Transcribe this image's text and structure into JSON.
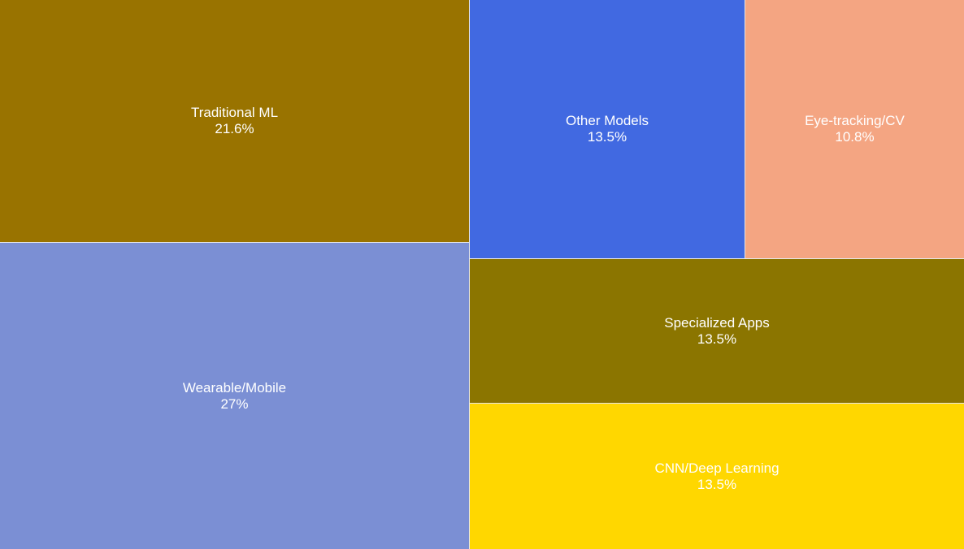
{
  "chart_data": {
    "type": "treemap",
    "title": "",
    "items": [
      {
        "name": "Wearable/Mobile",
        "value": 27,
        "label": "27%",
        "color": "#7b8fd4"
      },
      {
        "name": "Traditional ML",
        "value": 21.6,
        "label": "21.6%",
        "color": "#997300"
      },
      {
        "name": "Other Models",
        "value": 13.5,
        "label": "13.5%",
        "color": "#4169e1"
      },
      {
        "name": "Eye-tracking/CV",
        "value": 10.8,
        "label": "10.8%",
        "color": "#f4a582"
      },
      {
        "name": "Specialized Apps",
        "value": 13.5,
        "label": "13.5%",
        "color": "#8b7500"
      },
      {
        "name": "CNN/Deep Learning",
        "value": 13.5,
        "label": "13.5%",
        "color": "#ffd700"
      }
    ]
  }
}
